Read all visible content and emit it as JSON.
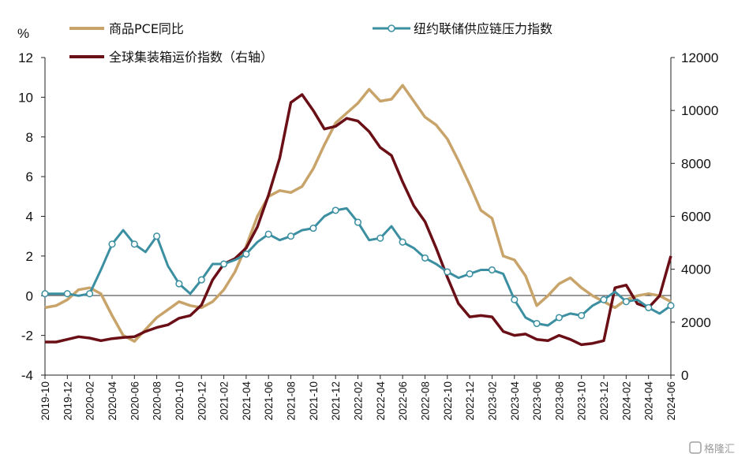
{
  "chart_data": {
    "type": "line",
    "y_left": {
      "unit": "%",
      "ticks": [
        12,
        10,
        8,
        6,
        4,
        2,
        0,
        -2,
        -4
      ],
      "range": [
        -4,
        12
      ]
    },
    "y_right": {
      "ticks": [
        12000,
        10000,
        8000,
        6000,
        4000,
        2000,
        0
      ],
      "range": [
        0,
        12000
      ]
    },
    "x_range": [
      "2019-10",
      "2024-06"
    ],
    "x_ticks": [
      "2019-10",
      "2019-12",
      "2020-02",
      "2020-04",
      "2020-06",
      "2020-08",
      "2020-10",
      "2020-12",
      "2021-02",
      "2021-04",
      "2021-06",
      "2021-08",
      "2021-10",
      "2021-12",
      "2022-02",
      "2022-04",
      "2022-06",
      "2022-08",
      "2022-10",
      "2022-12",
      "2023-02",
      "2023-04",
      "2023-06",
      "2023-08",
      "2023-10",
      "2023-12",
      "2024-02",
      "2024-04",
      "2024-06"
    ],
    "grid": false,
    "legend_placement": "top",
    "series": [
      {
        "name": "商品PCE同比",
        "axis": "left",
        "color": "#c8a46a",
        "marker": "none",
        "points": [
          [
            "2019-10",
            -0.6
          ],
          [
            "2019-11",
            -0.5
          ],
          [
            "2019-12",
            -0.2
          ],
          [
            "2020-01",
            0.3
          ],
          [
            "2020-02",
            0.4
          ],
          [
            "2020-03",
            0.1
          ],
          [
            "2020-04",
            -1.0
          ],
          [
            "2020-05",
            -2.0
          ],
          [
            "2020-06",
            -2.3
          ],
          [
            "2020-07",
            -1.7
          ],
          [
            "2020-08",
            -1.1
          ],
          [
            "2020-09",
            -0.7
          ],
          [
            "2020-10",
            -0.3
          ],
          [
            "2020-11",
            -0.5
          ],
          [
            "2020-12",
            -0.6
          ],
          [
            "2021-01",
            -0.3
          ],
          [
            "2021-02",
            0.3
          ],
          [
            "2021-03",
            1.2
          ],
          [
            "2021-04",
            2.5
          ],
          [
            "2021-05",
            4.0
          ],
          [
            "2021-06",
            5.0
          ],
          [
            "2021-07",
            5.3
          ],
          [
            "2021-08",
            5.2
          ],
          [
            "2021-09",
            5.5
          ],
          [
            "2021-10",
            6.4
          ],
          [
            "2021-11",
            7.6
          ],
          [
            "2021-12",
            8.7
          ],
          [
            "2022-01",
            9.2
          ],
          [
            "2022-02",
            9.7
          ],
          [
            "2022-03",
            10.4
          ],
          [
            "2022-04",
            9.8
          ],
          [
            "2022-05",
            9.9
          ],
          [
            "2022-06",
            10.6
          ],
          [
            "2022-07",
            9.8
          ],
          [
            "2022-08",
            9.0
          ],
          [
            "2022-09",
            8.6
          ],
          [
            "2022-10",
            7.9
          ],
          [
            "2022-11",
            6.8
          ],
          [
            "2022-12",
            5.6
          ],
          [
            "2023-01",
            4.3
          ],
          [
            "2023-02",
            3.9
          ],
          [
            "2023-03",
            2.0
          ],
          [
            "2023-04",
            1.8
          ],
          [
            "2023-05",
            1.0
          ],
          [
            "2023-06",
            -0.5
          ],
          [
            "2023-07",
            0.0
          ],
          [
            "2023-08",
            0.6
          ],
          [
            "2023-09",
            0.9
          ],
          [
            "2023-10",
            0.4
          ],
          [
            "2023-11",
            0.0
          ],
          [
            "2023-12",
            -0.3
          ],
          [
            "2024-01",
            -0.6
          ],
          [
            "2024-02",
            -0.2
          ],
          [
            "2024-03",
            0.0
          ],
          [
            "2024-04",
            0.1
          ],
          [
            "2024-05",
            0.0
          ],
          [
            "2024-06",
            -0.3
          ]
        ]
      },
      {
        "name": "纽约联储供应链压力指数",
        "axis": "left",
        "color": "#3b8fa1",
        "marker": "circle",
        "points": [
          [
            "2019-10",
            0.1
          ],
          [
            "2019-11",
            0.1
          ],
          [
            "2019-12",
            0.1
          ],
          [
            "2020-01",
            0.0
          ],
          [
            "2020-02",
            0.1
          ],
          [
            "2020-03",
            1.3
          ],
          [
            "2020-04",
            2.6
          ],
          [
            "2020-05",
            3.3
          ],
          [
            "2020-06",
            2.6
          ],
          [
            "2020-07",
            2.2
          ],
          [
            "2020-08",
            3.0
          ],
          [
            "2020-09",
            1.5
          ],
          [
            "2020-10",
            0.6
          ],
          [
            "2020-11",
            0.1
          ],
          [
            "2020-12",
            0.8
          ],
          [
            "2021-01",
            1.6
          ],
          [
            "2021-02",
            1.6
          ],
          [
            "2021-03",
            1.8
          ],
          [
            "2021-04",
            2.1
          ],
          [
            "2021-05",
            2.7
          ],
          [
            "2021-06",
            3.1
          ],
          [
            "2021-07",
            2.8
          ],
          [
            "2021-08",
            3.0
          ],
          [
            "2021-09",
            3.3
          ],
          [
            "2021-10",
            3.4
          ],
          [
            "2021-11",
            4.0
          ],
          [
            "2021-12",
            4.3
          ],
          [
            "2022-01",
            4.4
          ],
          [
            "2022-02",
            3.7
          ],
          [
            "2022-03",
            2.8
          ],
          [
            "2022-04",
            2.9
          ],
          [
            "2022-05",
            3.5
          ],
          [
            "2022-06",
            2.7
          ],
          [
            "2022-07",
            2.4
          ],
          [
            "2022-08",
            1.9
          ],
          [
            "2022-09",
            1.6
          ],
          [
            "2022-10",
            1.2
          ],
          [
            "2022-11",
            0.9
          ],
          [
            "2022-12",
            1.1
          ],
          [
            "2023-01",
            1.3
          ],
          [
            "2023-02",
            1.3
          ],
          [
            "2023-03",
            1.1
          ],
          [
            "2023-04",
            -0.2
          ],
          [
            "2023-05",
            -1.1
          ],
          [
            "2023-06",
            -1.4
          ],
          [
            "2023-07",
            -1.5
          ],
          [
            "2023-08",
            -1.1
          ],
          [
            "2023-09",
            -0.9
          ],
          [
            "2023-10",
            -1.0
          ],
          [
            "2023-11",
            -0.5
          ],
          [
            "2023-12",
            -0.2
          ],
          [
            "2024-01",
            0.2
          ],
          [
            "2024-02",
            -0.3
          ],
          [
            "2024-03",
            -0.2
          ],
          [
            "2024-04",
            -0.6
          ],
          [
            "2024-05",
            -0.9
          ],
          [
            "2024-06",
            -0.5
          ]
        ]
      },
      {
        "name": "全球集装箱运价指数（右轴）",
        "axis": "right",
        "color": "#6b0f17",
        "marker": "none",
        "points": [
          [
            "2019-10",
            1250
          ],
          [
            "2019-11",
            1250
          ],
          [
            "2019-12",
            1350
          ],
          [
            "2020-01",
            1450
          ],
          [
            "2020-02",
            1400
          ],
          [
            "2020-03",
            1300
          ],
          [
            "2020-04",
            1380
          ],
          [
            "2020-05",
            1420
          ],
          [
            "2020-06",
            1450
          ],
          [
            "2020-07",
            1650
          ],
          [
            "2020-08",
            1800
          ],
          [
            "2020-09",
            1900
          ],
          [
            "2020-10",
            2150
          ],
          [
            "2020-11",
            2250
          ],
          [
            "2020-12",
            2650
          ],
          [
            "2021-01",
            3600
          ],
          [
            "2021-02",
            4200
          ],
          [
            "2021-03",
            4400
          ],
          [
            "2021-04",
            4800
          ],
          [
            "2021-05",
            5600
          ],
          [
            "2021-06",
            6800
          ],
          [
            "2021-07",
            8200
          ],
          [
            "2021-08",
            10300
          ],
          [
            "2021-09",
            10600
          ],
          [
            "2021-10",
            10000
          ],
          [
            "2021-11",
            9300
          ],
          [
            "2021-12",
            9400
          ],
          [
            "2022-01",
            9700
          ],
          [
            "2022-02",
            9600
          ],
          [
            "2022-03",
            9200
          ],
          [
            "2022-04",
            8600
          ],
          [
            "2022-05",
            8300
          ],
          [
            "2022-06",
            7300
          ],
          [
            "2022-07",
            6400
          ],
          [
            "2022-08",
            5800
          ],
          [
            "2022-09",
            4800
          ],
          [
            "2022-10",
            3700
          ],
          [
            "2022-11",
            2700
          ],
          [
            "2022-12",
            2200
          ],
          [
            "2023-01",
            2250
          ],
          [
            "2023-02",
            2200
          ],
          [
            "2023-03",
            1650
          ],
          [
            "2023-04",
            1500
          ],
          [
            "2023-05",
            1550
          ],
          [
            "2023-06",
            1350
          ],
          [
            "2023-07",
            1300
          ],
          [
            "2023-08",
            1500
          ],
          [
            "2023-09",
            1350
          ],
          [
            "2023-10",
            1150
          ],
          [
            "2023-11",
            1200
          ],
          [
            "2023-12",
            1300
          ],
          [
            "2024-01",
            3300
          ],
          [
            "2024-02",
            3400
          ],
          [
            "2024-03",
            2700
          ],
          [
            "2024-04",
            2550
          ],
          [
            "2024-05",
            3000
          ],
          [
            "2024-06",
            4500
          ]
        ]
      }
    ]
  },
  "watermark": "格隆汇"
}
